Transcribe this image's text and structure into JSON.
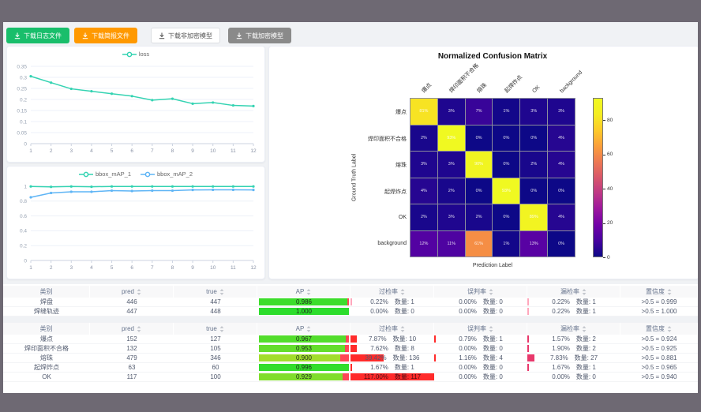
{
  "buttons": [
    {
      "label": "下载日志文件",
      "style": "green"
    },
    {
      "label": "下载简报文件",
      "style": "orange"
    },
    {
      "label": "下载非加密模型",
      "style": "plain"
    },
    {
      "label": "下载加密模型",
      "style": "gray"
    }
  ],
  "colors": {
    "teal": "#34d3b2",
    "blue": "#5fb5f5",
    "green_button": "#19be6b",
    "orange_button": "#ff9900",
    "gray_button": "#8a8a8a",
    "over_rate_red": "#ff2b2b",
    "miss_rate_red": "#e8386b",
    "pale_red": "#ffa8bd",
    "ap_track_red": "#ff4656"
  },
  "chart_data": [
    {
      "type": "line",
      "x": [
        1,
        2,
        3,
        4,
        5,
        6,
        7,
        8,
        9,
        10,
        11,
        12
      ],
      "series": [
        {
          "name": "loss",
          "values": [
            0.305,
            0.276,
            0.248,
            0.237,
            0.226,
            0.215,
            0.197,
            0.203,
            0.181,
            0.186,
            0.173,
            0.17
          ]
        }
      ],
      "ylim": [
        0,
        0.35
      ],
      "yticks": [
        0,
        0.05,
        0.1,
        0.15,
        0.2,
        0.25,
        0.3,
        0.35
      ],
      "legend_position": "top",
      "grid": true
    },
    {
      "type": "line",
      "x": [
        1,
        2,
        3,
        4,
        5,
        6,
        7,
        8,
        9,
        10,
        11,
        12
      ],
      "series": [
        {
          "name": "bbox_mAP_1",
          "values": [
            0.998,
            0.992,
            0.997,
            0.993,
            0.998,
            0.998,
            0.998,
            0.997,
            0.998,
            0.998,
            0.998,
            0.998
          ]
        },
        {
          "name": "bbox_mAP_2",
          "values": [
            0.851,
            0.91,
            0.926,
            0.926,
            0.941,
            0.936,
            0.942,
            0.941,
            0.951,
            0.952,
            0.952,
            0.951
          ]
        }
      ],
      "ylim": [
        0,
        1
      ],
      "yticks": [
        0,
        0.2,
        0.4,
        0.6,
        0.8,
        1
      ],
      "legend_position": "top",
      "grid": true
    },
    {
      "type": "heatmap",
      "title": "Normalized Confusion Matrix",
      "xlabel": "Prediction Label",
      "ylabel": "Ground Truth Label",
      "labels": [
        "爆点",
        "焊印面积不合格",
        "熔珠",
        "起焊炸点",
        "OK",
        "background"
      ],
      "values": [
        [
          81,
          3,
          7,
          1,
          3,
          3
        ],
        [
          2,
          93,
          0,
          0,
          0,
          4
        ],
        [
          3,
          3,
          90,
          0,
          2,
          4
        ],
        [
          4,
          2,
          0,
          93,
          0,
          0
        ],
        [
          2,
          3,
          2,
          0,
          89,
          4
        ],
        [
          12,
          11,
          61,
          1,
          13,
          0
        ]
      ],
      "unit": "%",
      "vmax": 93,
      "colorbar_ticks": [
        0,
        20,
        40,
        60,
        80
      ],
      "colormap": "plasma"
    }
  ],
  "tables": [
    {
      "headers": [
        {
          "label": "类别",
          "sortable": false
        },
        {
          "label": "pred",
          "sortable": true
        },
        {
          "label": "true",
          "sortable": true
        },
        {
          "label": "AP",
          "sortable": true
        },
        {
          "label": "过检率",
          "sortable": true
        },
        {
          "label": "误判率",
          "sortable": true
        },
        {
          "label": "漏检率",
          "sortable": true
        },
        {
          "label": "置信度",
          "sortable": true
        }
      ],
      "rows": [
        {
          "class": "焊盘",
          "pred": "446",
          "true": "447",
          "ap": "0.986",
          "over": {
            "pct": "0.22%",
            "count": "数量: 1"
          },
          "wrong": {
            "pct": "0.00%",
            "count": "数量: 0"
          },
          "miss": {
            "pct": "0.22%",
            "count": "数量: 1"
          },
          "conf": ">0.5 = 0.999"
        },
        {
          "class": "焊缝轨迹",
          "pred": "447",
          "true": "448",
          "ap": "1.000",
          "over": {
            "pct": "0.00%",
            "count": "数量: 0"
          },
          "wrong": {
            "pct": "0.00%",
            "count": "数量: 0"
          },
          "miss": {
            "pct": "0.22%",
            "count": "数量: 1"
          },
          "conf": ">0.5 = 1.000"
        }
      ]
    },
    {
      "headers": [
        {
          "label": "类别",
          "sortable": false
        },
        {
          "label": "pred",
          "sortable": true
        },
        {
          "label": "true",
          "sortable": true
        },
        {
          "label": "AP",
          "sortable": true
        },
        {
          "label": "过检率",
          "sortable": true
        },
        {
          "label": "误判率",
          "sortable": true
        },
        {
          "label": "漏检率",
          "sortable": true
        },
        {
          "label": "置信度",
          "sortable": true
        }
      ],
      "rows": [
        {
          "class": "爆点",
          "pred": "152",
          "true": "127",
          "ap": "0.967",
          "over": {
            "pct": "7.87%",
            "count": "数量: 10"
          },
          "wrong": {
            "pct": "0.79%",
            "count": "数量: 1"
          },
          "miss": {
            "pct": "1.57%",
            "count": "数量: 2"
          },
          "conf": ">0.5 = 0.924"
        },
        {
          "class": "焊印面积不合格",
          "pred": "132",
          "true": "105",
          "ap": "0.953",
          "over": {
            "pct": "7.62%",
            "count": "数量: 8"
          },
          "wrong": {
            "pct": "0.00%",
            "count": "数量: 0"
          },
          "miss": {
            "pct": "1.90%",
            "count": "数量: 2"
          },
          "conf": ">0.5 = 0.925"
        },
        {
          "class": "熔珠",
          "pred": "479",
          "true": "346",
          "ap": "0.900",
          "over": {
            "pct": "39.42%",
            "count": "数量: 136"
          },
          "wrong": {
            "pct": "1.16%",
            "count": "数量: 4"
          },
          "miss": {
            "pct": "7.83%",
            "count": "数量: 27"
          },
          "conf": ">0.5 = 0.881"
        },
        {
          "class": "起焊炸点",
          "pred": "63",
          "true": "60",
          "ap": "0.996",
          "over": {
            "pct": "1.67%",
            "count": "数量: 1"
          },
          "wrong": {
            "pct": "0.00%",
            "count": "数量: 0"
          },
          "miss": {
            "pct": "1.67%",
            "count": "数量: 1"
          },
          "conf": ">0.5 = 0.965"
        },
        {
          "class": "OK",
          "pred": "117",
          "true": "100",
          "ap": "0.929",
          "over": {
            "pct": "117.00%",
            "count": "数量: 117"
          },
          "wrong": {
            "pct": "0.00%",
            "count": "数量: 0"
          },
          "miss": {
            "pct": "0.00%",
            "count": "数量: 0"
          },
          "conf": ">0.5 = 0.940"
        }
      ]
    }
  ]
}
